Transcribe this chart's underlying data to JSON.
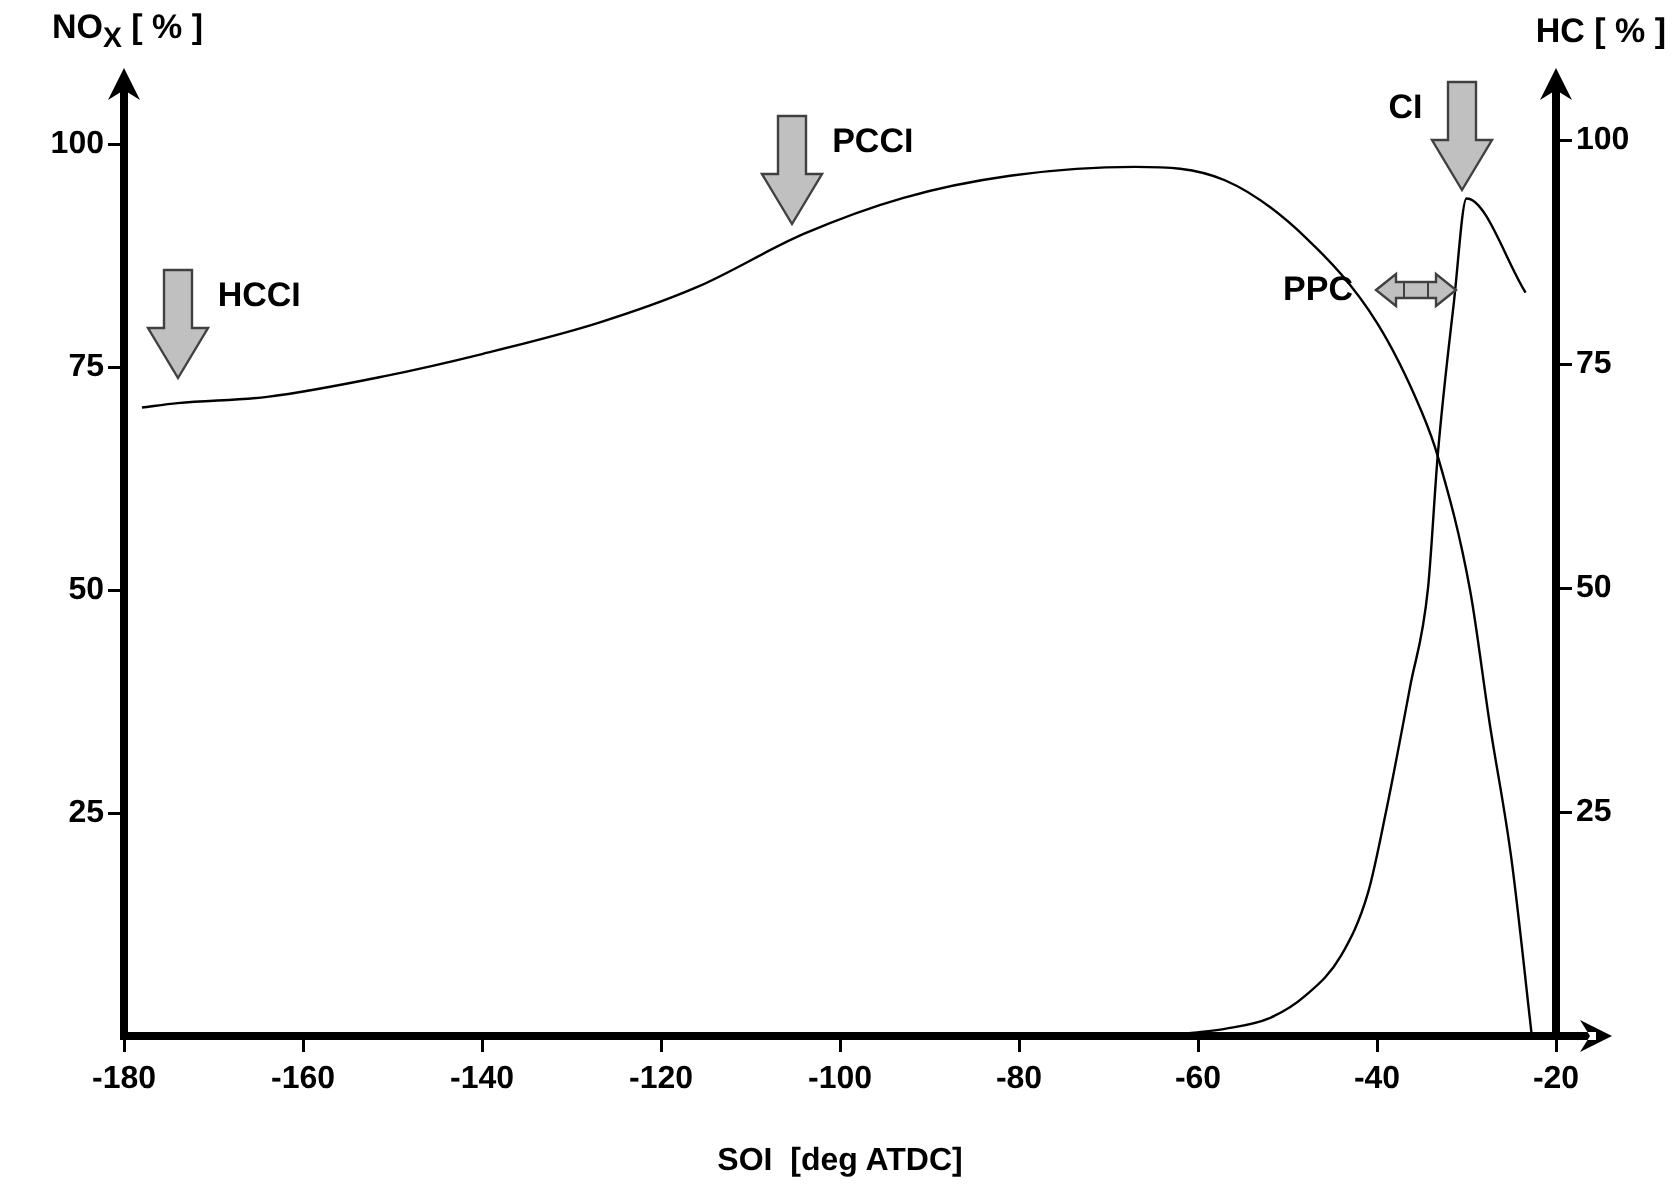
{
  "chart_data": {
    "type": "line",
    "xlabel": "SOI  [deg ATDC]",
    "ylabel": "NO$_{X}$ [ % ]",
    "y2label": "HC [ % ]",
    "xlim": [
      -180,
      -20
    ],
    "xticks": [
      -180,
      -160,
      -140,
      -120,
      -100,
      -80,
      -60,
      -40,
      -20
    ],
    "ylim": [
      0,
      105
    ],
    "yticks": [
      25,
      50,
      75,
      100
    ],
    "y2lim": [
      0,
      104.5
    ],
    "y2ticks": [
      25,
      50,
      75,
      100
    ],
    "grid": false,
    "legend": false,
    "marker": "none",
    "line_style": "solid",
    "series": [
      {
        "color": "#000000",
        "x": [
          -178,
          -174,
          -164,
          -151,
          -140,
          -127,
          -116,
          -104,
          -93,
          -81,
          -67,
          -57,
          -48,
          -40,
          -35,
          -33.2,
          -29.6,
          -27.4,
          -25,
          -22.7
        ],
        "values": [
          70.5,
          71,
          71.7,
          74,
          76.5,
          80,
          84,
          90,
          94,
          96.5,
          97.5,
          96,
          89.6,
          80,
          70,
          65,
          50,
          35,
          20,
          0
        ]
      },
      {
        "color": "#000000",
        "axis": "y2",
        "x": [
          -61,
          -57,
          -52,
          -48,
          -44,
          -41,
          -39,
          -36.3,
          -34.3,
          -33.2,
          -31.4,
          -30,
          -23.4
        ],
        "values": [
          0.3,
          0.8,
          2,
          4.5,
          9,
          16,
          25,
          39,
          50,
          65,
          82,
          93.5,
          83
        ]
      }
    ],
    "annotations": [
      {
        "text": "HCCI",
        "x": -174,
        "y": 71
      },
      {
        "text": "PCCI",
        "x": -104,
        "y": 90
      },
      {
        "text": "CI",
        "x": -30,
        "y": 93.5
      },
      {
        "text": "PPC",
        "x": -40,
        "y": 80
      }
    ]
  }
}
